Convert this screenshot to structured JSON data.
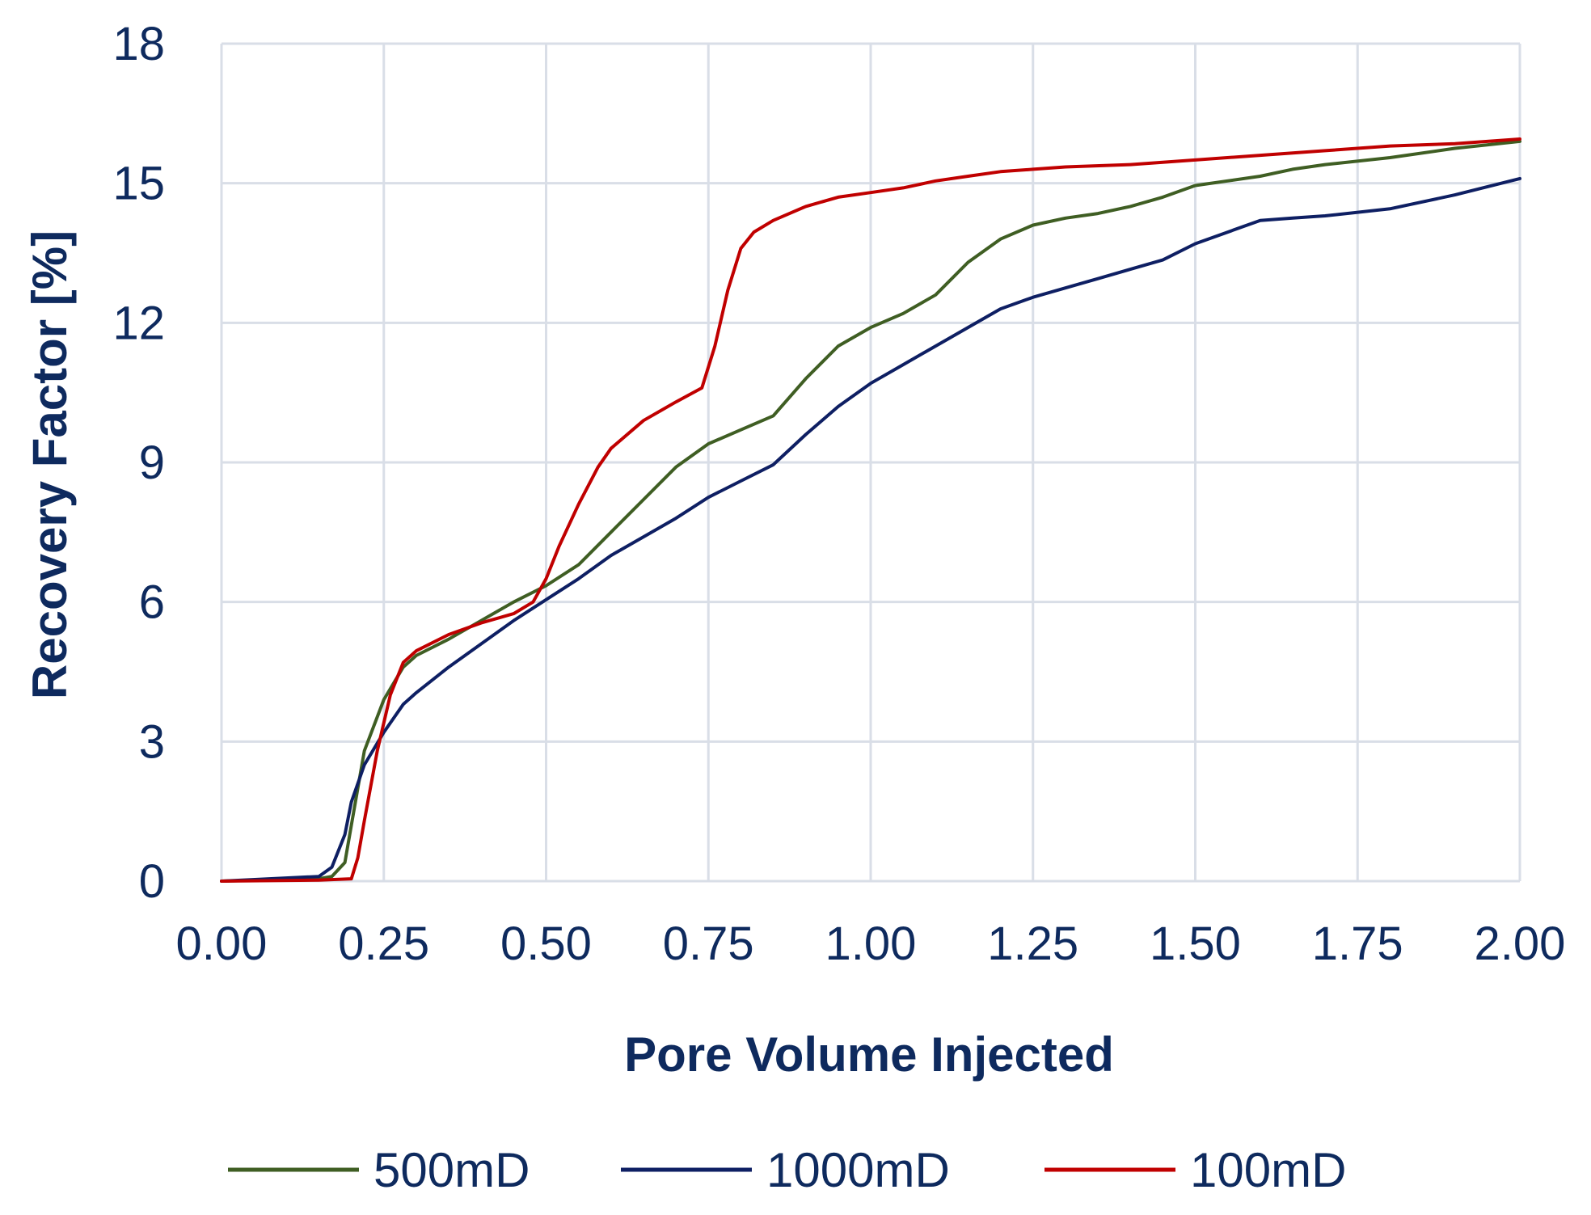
{
  "chart_data": {
    "type": "line",
    "title": "",
    "xlabel": "Pore Volume Injected",
    "ylabel": "Recovery Factor [%]",
    "xlim": [
      0,
      2
    ],
    "ylim": [
      0,
      18
    ],
    "grid": true,
    "legend_position": "bottom",
    "x_ticks": [
      {
        "value": 0.0,
        "label": "0.00"
      },
      {
        "value": 0.25,
        "label": "0.25"
      },
      {
        "value": 0.5,
        "label": "0.50"
      },
      {
        "value": 0.75,
        "label": "0.75"
      },
      {
        "value": 1.0,
        "label": "1.00"
      },
      {
        "value": 1.25,
        "label": "1.25"
      },
      {
        "value": 1.5,
        "label": "1.50"
      },
      {
        "value": 1.75,
        "label": "1.75"
      },
      {
        "value": 2.0,
        "label": "2.00"
      }
    ],
    "y_ticks": [
      {
        "value": 0,
        "label": "0"
      },
      {
        "value": 3,
        "label": "3"
      },
      {
        "value": 6,
        "label": "6"
      },
      {
        "value": 9,
        "label": "9"
      },
      {
        "value": 12,
        "label": "12"
      },
      {
        "value": 15,
        "label": "15"
      },
      {
        "value": 18,
        "label": "18"
      }
    ],
    "series": [
      {
        "name": "500mD",
        "color": "#3f5e23",
        "x": [
          0,
          0.15,
          0.17,
          0.19,
          0.2,
          0.22,
          0.25,
          0.28,
          0.3,
          0.35,
          0.4,
          0.45,
          0.5,
          0.55,
          0.6,
          0.65,
          0.7,
          0.75,
          0.8,
          0.85,
          0.9,
          0.95,
          1.0,
          1.05,
          1.1,
          1.15,
          1.2,
          1.25,
          1.3,
          1.35,
          1.4,
          1.45,
          1.5,
          1.6,
          1.65,
          1.7,
          1.8,
          1.9,
          2.0
        ],
        "y": [
          0,
          0.05,
          0.1,
          0.4,
          1.2,
          2.8,
          3.9,
          4.6,
          4.85,
          5.2,
          5.6,
          6.0,
          6.35,
          6.8,
          7.5,
          8.2,
          8.9,
          9.4,
          9.7,
          10.0,
          10.8,
          11.5,
          11.9,
          12.2,
          12.6,
          13.3,
          13.8,
          14.1,
          14.25,
          14.35,
          14.5,
          14.7,
          14.95,
          15.15,
          15.3,
          15.4,
          15.55,
          15.75,
          15.9
        ]
      },
      {
        "name": "1000mD",
        "color": "#0e1f63",
        "x": [
          0,
          0.15,
          0.17,
          0.19,
          0.2,
          0.22,
          0.25,
          0.28,
          0.3,
          0.35,
          0.4,
          0.45,
          0.5,
          0.55,
          0.6,
          0.65,
          0.7,
          0.75,
          0.8,
          0.85,
          0.9,
          0.95,
          1.0,
          1.05,
          1.1,
          1.15,
          1.2,
          1.25,
          1.3,
          1.35,
          1.4,
          1.45,
          1.5,
          1.6,
          1.65,
          1.7,
          1.8,
          1.9,
          2.0
        ],
        "y": [
          0,
          0.1,
          0.3,
          1.0,
          1.7,
          2.5,
          3.2,
          3.8,
          4.05,
          4.6,
          5.1,
          5.6,
          6.05,
          6.5,
          7.0,
          7.4,
          7.8,
          8.25,
          8.6,
          8.95,
          9.6,
          10.2,
          10.7,
          11.1,
          11.5,
          11.9,
          12.3,
          12.55,
          12.75,
          12.95,
          13.15,
          13.35,
          13.7,
          14.2,
          14.25,
          14.3,
          14.45,
          14.75,
          15.1
        ]
      },
      {
        "name": "100mD",
        "color": "#c00000",
        "x": [
          0,
          0.15,
          0.2,
          0.21,
          0.22,
          0.24,
          0.26,
          0.28,
          0.3,
          0.35,
          0.4,
          0.45,
          0.48,
          0.5,
          0.52,
          0.55,
          0.58,
          0.6,
          0.65,
          0.7,
          0.74,
          0.76,
          0.78,
          0.8,
          0.82,
          0.85,
          0.9,
          0.95,
          1.0,
          1.05,
          1.1,
          1.15,
          1.2,
          1.25,
          1.3,
          1.4,
          1.5,
          1.6,
          1.7,
          1.8,
          1.9,
          2.0
        ],
        "y": [
          0,
          0.02,
          0.05,
          0.5,
          1.3,
          2.8,
          4.0,
          4.7,
          4.95,
          5.3,
          5.55,
          5.75,
          6.0,
          6.5,
          7.2,
          8.1,
          8.9,
          9.3,
          9.9,
          10.3,
          10.6,
          11.5,
          12.7,
          13.6,
          13.95,
          14.2,
          14.5,
          14.7,
          14.8,
          14.9,
          15.05,
          15.15,
          15.25,
          15.3,
          15.35,
          15.4,
          15.5,
          15.6,
          15.7,
          15.8,
          15.85,
          15.95
        ]
      }
    ]
  }
}
